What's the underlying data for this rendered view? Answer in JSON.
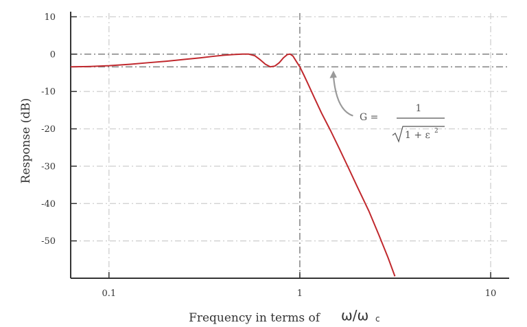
{
  "chart_data": {
    "type": "line",
    "title": "",
    "xlabel": "Frequency in terms of",
    "xlabel_symbol": "ω/ω",
    "xlabel_symbol_sub": "c",
    "ylabel": "Response (dB)",
    "xscale": "log",
    "xlim": [
      0.063,
      12.5
    ],
    "ylim": [
      -60,
      11
    ],
    "xticks": [
      {
        "value": 0.1,
        "label": "0.1"
      },
      {
        "value": 1,
        "label": "1"
      },
      {
        "value": 10,
        "label": "10"
      }
    ],
    "yticks": [
      {
        "value": 10,
        "label": "10"
      },
      {
        "value": 0,
        "label": "0"
      },
      {
        "value": -10,
        "label": "-10"
      },
      {
        "value": -20,
        "label": "-20"
      },
      {
        "value": -30,
        "label": "-30"
      },
      {
        "value": -40,
        "label": "-40"
      },
      {
        "value": -50,
        "label": "-50"
      }
    ],
    "grid": true,
    "reference_lines": [
      {
        "axis": "y",
        "value": 0
      },
      {
        "axis": "y",
        "value": -3.4
      },
      {
        "axis": "x",
        "value": 1
      }
    ],
    "series": [
      {
        "name": "",
        "color": "#c0282d",
        "points": [
          [
            0.063,
            -3.4
          ],
          [
            0.08,
            -3.3
          ],
          [
            0.1,
            -3.1
          ],
          [
            0.13,
            -2.7
          ],
          [
            0.16,
            -2.3
          ],
          [
            0.2,
            -1.9
          ],
          [
            0.25,
            -1.4
          ],
          [
            0.3,
            -1.0
          ],
          [
            0.35,
            -0.6
          ],
          [
            0.4,
            -0.3
          ],
          [
            0.45,
            -0.1
          ],
          [
            0.5,
            0.0
          ],
          [
            0.54,
            0.0
          ],
          [
            0.58,
            -0.4
          ],
          [
            0.62,
            -1.5
          ],
          [
            0.66,
            -2.7
          ],
          [
            0.7,
            -3.4
          ],
          [
            0.74,
            -3.2
          ],
          [
            0.78,
            -2.3
          ],
          [
            0.82,
            -1.0
          ],
          [
            0.86,
            -0.1
          ],
          [
            0.89,
            0.0
          ],
          [
            0.92,
            -0.5
          ],
          [
            0.96,
            -2.0
          ],
          [
            1.0,
            -3.4
          ],
          [
            1.05,
            -5.6
          ],
          [
            1.1,
            -7.8
          ],
          [
            1.2,
            -12.0
          ],
          [
            1.3,
            -15.8
          ],
          [
            1.45,
            -20.5
          ],
          [
            1.6,
            -25.0
          ],
          [
            1.8,
            -30.5
          ],
          [
            2.0,
            -35.5
          ],
          [
            2.3,
            -42.0
          ],
          [
            2.6,
            -48.5
          ],
          [
            2.9,
            -54.5
          ],
          [
            3.15,
            -59.5
          ]
        ]
      }
    ],
    "annotations": [
      {
        "type": "arrow",
        "from": [
          1.9,
          -16.5
        ],
        "to": [
          1.5,
          -4.4
        ],
        "label_prefix": "G =",
        "numerator": "1",
        "denominator_left": "1 + ε",
        "denominator_superscript": "2"
      }
    ]
  }
}
